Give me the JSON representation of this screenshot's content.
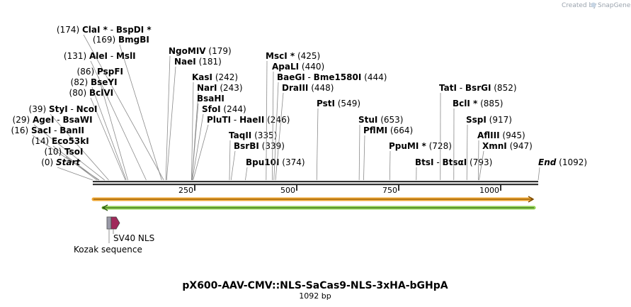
{
  "app": {
    "created_by": "Created by",
    "brand": "SnapGene"
  },
  "plasmid": {
    "name": "pX600-AAV-CMV::NLS-SaCas9-NLS-3xHA-bGHpA",
    "length_label": "1092 bp",
    "length": 1092
  },
  "ruler": {
    "ticks": [
      "250",
      "500",
      "750",
      "1000"
    ],
    "tick_values": [
      250,
      500,
      750,
      1000
    ]
  },
  "sites": [
    {
      "text": "(174)",
      "name": "ClaI *",
      "sep": " - ",
      "name2": "BspDI *",
      "pos": 174
    },
    {
      "text": "(169)",
      "name": "BmgBI",
      "pos": 169
    },
    {
      "text": "(131)",
      "name": "AleI",
      "sep": " - ",
      "name2": "MslI",
      "pos": 131
    },
    {
      "text": "(86)",
      "name": "PspFI",
      "pos": 86
    },
    {
      "text": "(82)",
      "name": "BseYI",
      "pos": 82
    },
    {
      "text": "(80)",
      "name": "BclVI",
      "pos": 80
    },
    {
      "text": "(39)",
      "name": "StyI",
      "sep": " - ",
      "name2": "NcoI",
      "pos": 39
    },
    {
      "text": "(29)",
      "name": "AgeI",
      "sep": " - ",
      "name2": "BsaWI",
      "pos": 29
    },
    {
      "text": "(16)",
      "name": "SacI",
      "sep": " - ",
      "name2": "BanII",
      "pos": 16
    },
    {
      "text": "(14)",
      "name": "Eco53kI",
      "pos": 14
    },
    {
      "text": "(10)",
      "name": "TsoI",
      "pos": 10
    },
    {
      "text": "(0)",
      "name": "Start",
      "pos": 0,
      "italic": true
    },
    {
      "text": "(179)",
      "name": "NgoMIV",
      "pos": 179
    },
    {
      "text": "(181)",
      "name": "NaeI",
      "pos": 181
    },
    {
      "text": "(242)",
      "name": "KasI",
      "pos": 242
    },
    {
      "text": "(243)",
      "name": "NarI",
      "pos": 243
    },
    {
      "text": "",
      "name": "BsaHI",
      "pos": 243
    },
    {
      "text": "(244)",
      "name": "SfoI",
      "pos": 244
    },
    {
      "text": "(246)",
      "name": "PluTI",
      "sep": " - ",
      "name2": "HaeII",
      "pos": 246
    },
    {
      "text": "(335)",
      "name": "TaqII",
      "pos": 335
    },
    {
      "text": "(339)",
      "name": "BsrBI",
      "pos": 339
    },
    {
      "text": "(374)",
      "name": "Bpu10I",
      "pos": 374
    },
    {
      "text": "(425)",
      "name": "MscI *",
      "pos": 425
    },
    {
      "text": "(440)",
      "name": "ApaLI",
      "pos": 440
    },
    {
      "text": "(444)",
      "name": "BaeGI",
      "sep": " - ",
      "name2": "Bme1580I",
      "pos": 444
    },
    {
      "text": "(448)",
      "name": "DraIII",
      "pos": 448
    },
    {
      "text": "(549)",
      "name": "PstI",
      "pos": 549
    },
    {
      "text": "(653)",
      "name": "StuI",
      "pos": 653
    },
    {
      "text": "(664)",
      "name": "PflMI",
      "pos": 664
    },
    {
      "text": "(728)",
      "name": "PpuMI *",
      "pos": 728
    },
    {
      "text": "(793)",
      "name": "BtsI",
      "sep": " - ",
      "name2": "BtsαI",
      "pos": 793
    },
    {
      "text": "(852)",
      "name": "TatI",
      "sep": " - ",
      "name2": "BsrGI",
      "pos": 852
    },
    {
      "text": "(885)",
      "name": "BclI *",
      "pos": 885
    },
    {
      "text": "(917)",
      "name": "SspI",
      "pos": 917
    },
    {
      "text": "(945)",
      "name": "AflIII",
      "pos": 945
    },
    {
      "text": "(947)",
      "name": "XmnI",
      "pos": 947
    },
    {
      "text": "(1092)",
      "name": "End",
      "pos": 1092,
      "italic": true
    }
  ],
  "features": {
    "orange_arrow": {
      "name": "orange-feature",
      "start": 0,
      "end": 1092,
      "direction": "forward",
      "color": "#f0a732"
    },
    "green_arrow": {
      "name": "green-feature",
      "start": 20,
      "end": 1092,
      "direction": "reverse",
      "color": "#8fd14f"
    },
    "sv40": {
      "label": "SV40 NLS",
      "color": "#a0295a"
    },
    "kozak": {
      "label": "Kozak sequence",
      "color": "#9a9aa8"
    }
  },
  "colors": {
    "backbone": "#333333",
    "leader": "#8a8a8a"
  }
}
